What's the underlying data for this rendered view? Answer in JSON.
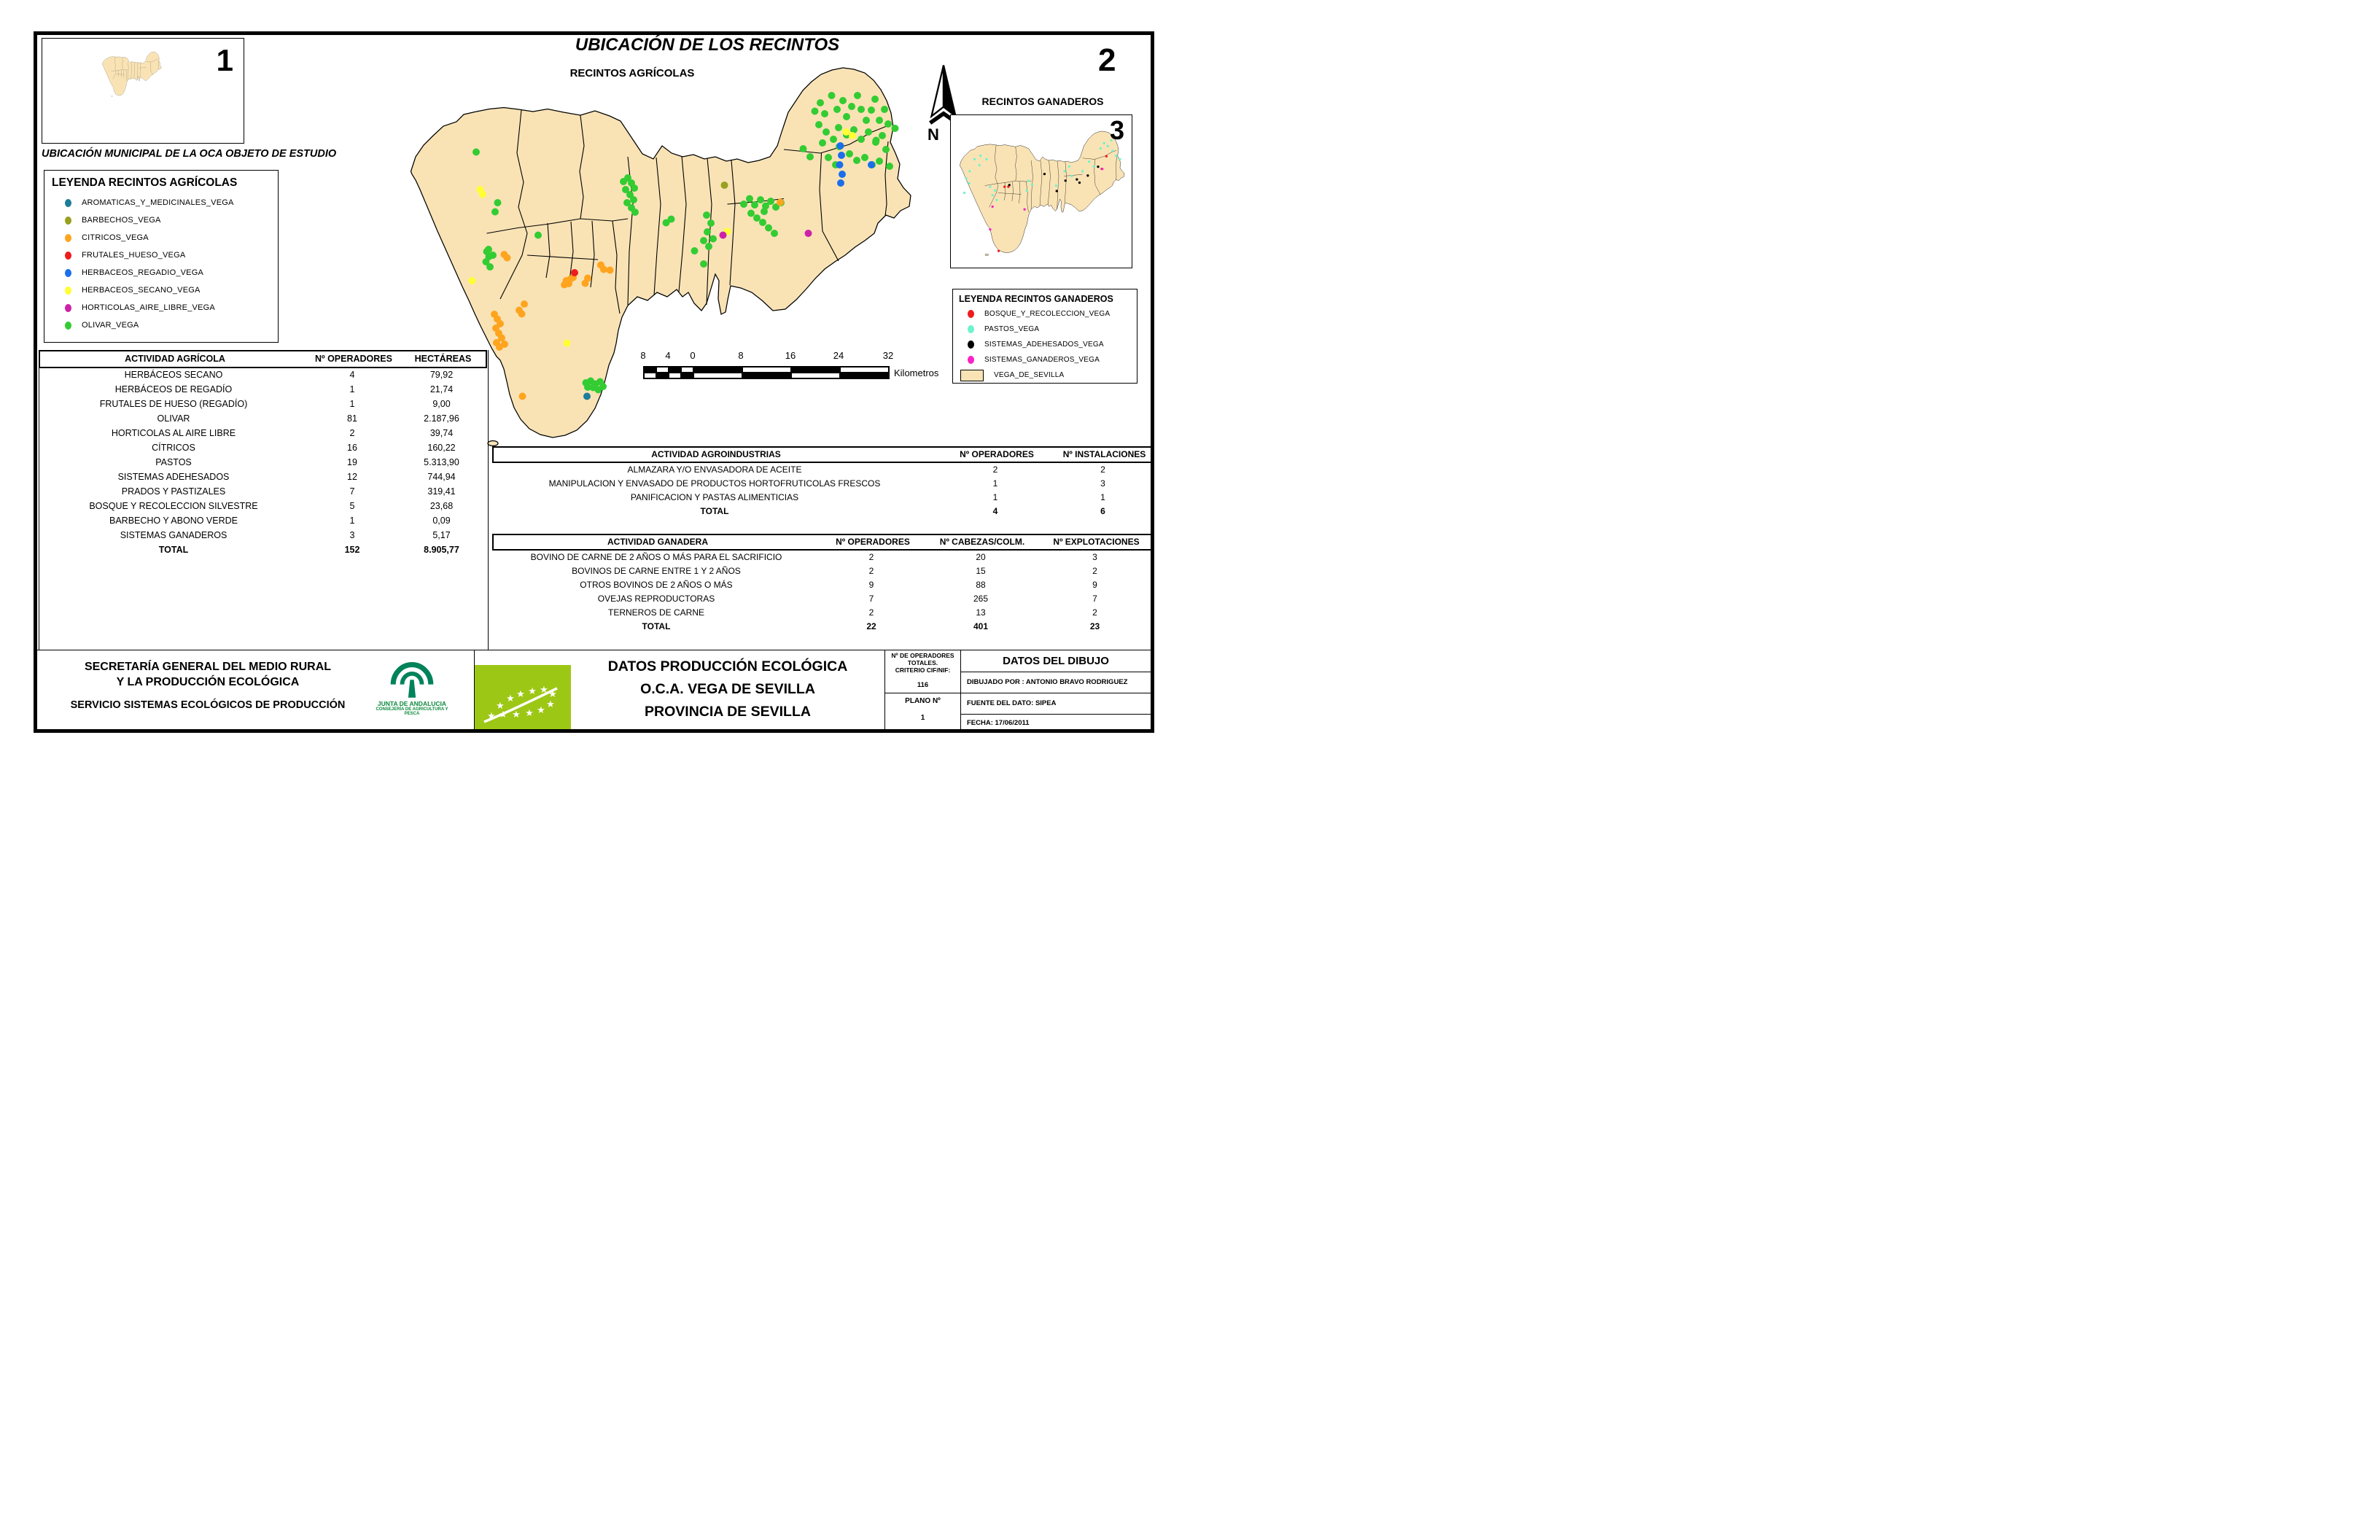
{
  "page": {
    "inset1_number": "1",
    "inset2_number": "2",
    "inset3_number": "3"
  },
  "titles": {
    "main": "UBICACIÓN DE LOS RECINTOS",
    "sub_agricolas": "RECINTOS AGRÍCOLAS",
    "sub_ganaderos": "RECINTOS GANADEROS",
    "inset_caption": "UBICACIÓN MUNICIPAL DE LA OCA OBJETO DE ESTUDIO"
  },
  "compass": {
    "label": "N"
  },
  "scalebar": {
    "labels": [
      "8",
      "4",
      "0",
      "8",
      "16",
      "24",
      "32"
    ],
    "unit": "Kilometros"
  },
  "legend_agricolas": {
    "title": "LEYENDA RECINTOS AGRÍCOLAS",
    "items": [
      {
        "label": "AROMATICAS_Y_MEDICINALES_VEGA",
        "color": "#1D7E99"
      },
      {
        "label": "BARBECHOS_VEGA",
        "color": "#98A01E"
      },
      {
        "label": "CITRICOS_VEGA",
        "color": "#FFA41E"
      },
      {
        "label": "FRUTALES_HUESO_VEGA",
        "color": "#EE1C1C"
      },
      {
        "label": "HERBACEOS_REGADIO_VEGA",
        "color": "#1C6EEB"
      },
      {
        "label": "HERBACEOS_SECANO_VEGA",
        "color": "#FFFF33"
      },
      {
        "label": "HORTICOLAS_AIRE_LIBRE_VEGA",
        "color": "#CC22AA"
      },
      {
        "label": "OLIVAR_VEGA",
        "color": "#33CC33"
      }
    ]
  },
  "legend_ganaderos": {
    "title": "LEYENDA RECINTOS GANADEROS",
    "items": [
      {
        "label": "BOSQUE_Y_RECOLECCION_VEGA",
        "color": "#EE1C1C"
      },
      {
        "label": "PASTOS_VEGA",
        "color": "#6FF2CE"
      },
      {
        "label": "SISTEMAS_ADEHESADOS_VEGA",
        "color": "#000000"
      },
      {
        "label": "SISTEMAS_GANADEROS_VEGA",
        "color": "#FB20C8"
      },
      {
        "label": "VEGA_DE_SEVILLA",
        "color": "#F9E3B5",
        "swatch": true
      }
    ]
  },
  "tables": {
    "agricola": {
      "headers": [
        "ACTIVIDAD AGRÍCOLA",
        "Nº OPERADORES",
        "HECTÁREAS"
      ],
      "rows": [
        [
          "HERBÁCEOS SECANO",
          "4",
          "79,92"
        ],
        [
          "HERBÁCEOS DE REGADÍO",
          "1",
          "21,74"
        ],
        [
          "FRUTALES DE HUESO (REGADÍO)",
          "1",
          "9,00"
        ],
        [
          "OLIVAR",
          "81",
          "2.187,96"
        ],
        [
          "HORTICOLAS AL AIRE LIBRE",
          "2",
          "39,74"
        ],
        [
          "CÍTRICOS",
          "16",
          "160,22"
        ],
        [
          "PASTOS",
          "19",
          "5.313,90"
        ],
        [
          "SISTEMAS ADEHESADOS",
          "12",
          "744,94"
        ],
        [
          "PRADOS Y PASTIZALES",
          "7",
          "319,41"
        ],
        [
          "BOSQUE Y RECOLECCION SILVESTRE",
          "5",
          "23,68"
        ],
        [
          "BARBECHO Y ABONO VERDE",
          "1",
          "0,09"
        ],
        [
          "SISTEMAS GANADEROS",
          "3",
          "5,17"
        ],
        [
          "TOTAL",
          "152",
          "8.905,77"
        ]
      ]
    },
    "agroindustrias": {
      "headers": [
        "ACTIVIDAD AGROINDUSTRIAS",
        "Nº OPERADORES",
        "Nº INSTALACIONES"
      ],
      "rows": [
        [
          "ALMAZARA Y/O ENVASADORA DE ACEITE",
          "2",
          "2"
        ],
        [
          "MANIPULACION Y ENVASADO DE PRODUCTOS HORTOFRUTICOLAS FRESCOS",
          "1",
          "3"
        ],
        [
          "PANIFICACION Y PASTAS ALIMENTICIAS",
          "1",
          "1"
        ],
        [
          "TOTAL",
          "4",
          "6"
        ]
      ]
    },
    "ganadera": {
      "headers": [
        "ACTIVIDAD GANADERA",
        "Nº OPERADORES",
        "Nº CABEZAS/COLM.",
        "Nº EXPLOTACIONES"
      ],
      "rows": [
        [
          "BOVINO DE CARNE DE 2 AÑOS O MÁS PARA EL SACRIFICIO",
          "2",
          "20",
          "3"
        ],
        [
          "BOVINOS  DE CARNE ENTRE 1 Y 2 AÑOS",
          "2",
          "15",
          "2"
        ],
        [
          "OTROS BOVINOS DE 2 AÑOS O MÁS",
          "9",
          "88",
          "9"
        ],
        [
          "OVEJAS REPRODUCTORAS",
          "7",
          "265",
          "7"
        ],
        [
          "TERNEROS DE CARNE",
          "2",
          "13",
          "2"
        ],
        [
          "TOTAL",
          "22",
          "401",
          "23"
        ]
      ]
    }
  },
  "footer": {
    "org_line1": "SECRETARÍA GENERAL DEL MEDIO RURAL",
    "org_line2": "Y LA PRODUCCIÓN ECOLÓGICA",
    "org_line3": "SERVICIO SISTEMAS ECOLÓGICOS DE PRODUCCIÓN",
    "junta_name": "JUNTA DE ANDALUCIA",
    "junta_dept": "CONSEJERÍA DE AGRICULTURA Y PESCA",
    "doc_title1": "DATOS PRODUCCIÓN ECOLÓGICA",
    "doc_title2": "O.C.A. VEGA DE SEVILLA",
    "doc_title3": "PROVINCIA DE SEVILLA",
    "operators_label1": "Nº DE OPERADORES",
    "operators_label2": "TOTALES.",
    "operators_label3": "CRITERIO CIF/NIF:",
    "operators_value": "116",
    "plano_label": "PLANO Nº",
    "plano_value": "1",
    "drawing_title": "DATOS DEL DIBUJO",
    "drawn_by": "DIBUJADO POR : ANTONIO BRAVO RODRIGUEZ",
    "source": "FUENTE DEL DATO: SIPEA",
    "date": "FECHA: 17/06/2011"
  },
  "map": {
    "land_color": "#F9E3B5",
    "border_color": "#000000",
    "agricola_layers": [
      {
        "key": "olivar",
        "color": "#33CC33",
        "points": [
          [
            2235,
            305
          ],
          [
            2250,
            282
          ],
          [
            2262,
            312
          ],
          [
            2281,
            262
          ],
          [
            2296,
            300
          ],
          [
            2312,
            276
          ],
          [
            2322,
            320
          ],
          [
            2336,
            292
          ],
          [
            2352,
            262
          ],
          [
            2362,
            300
          ],
          [
            2376,
            330
          ],
          [
            2390,
            302
          ],
          [
            2400,
            272
          ],
          [
            2412,
            330
          ],
          [
            2426,
            300
          ],
          [
            2436,
            340
          ],
          [
            2300,
            350
          ],
          [
            2322,
            370
          ],
          [
            2342,
            356
          ],
          [
            2362,
            382
          ],
          [
            2382,
            362
          ],
          [
            2402,
            390
          ],
          [
            2420,
            372
          ],
          [
            2430,
            410
          ],
          [
            2246,
            342
          ],
          [
            2266,
            362
          ],
          [
            2286,
            382
          ],
          [
            2256,
            392
          ],
          [
            2302,
            402
          ],
          [
            2330,
            422
          ],
          [
            2350,
            440
          ],
          [
            2372,
            432
          ],
          [
            2392,
            452
          ],
          [
            2412,
            442
          ],
          [
            2272,
            432
          ],
          [
            2292,
            452
          ],
          [
            2440,
            456
          ],
          [
            2403,
            385
          ],
          [
            2455,
            352
          ],
          [
            2203,
            408
          ],
          [
            2222,
            430
          ],
          [
            1710,
            498
          ],
          [
            1722,
            488
          ],
          [
            1732,
            502
          ],
          [
            1740,
            516
          ],
          [
            1716,
            520
          ],
          [
            1728,
            534
          ],
          [
            1738,
            548
          ],
          [
            1720,
            556
          ],
          [
            1732,
            570
          ],
          [
            1742,
            582
          ],
          [
            2040,
            560
          ],
          [
            2056,
            545
          ],
          [
            2070,
            562
          ],
          [
            2086,
            548
          ],
          [
            2100,
            565
          ],
          [
            2114,
            552
          ],
          [
            2128,
            568
          ],
          [
            2142,
            556
          ],
          [
            2060,
            585
          ],
          [
            2076,
            598
          ],
          [
            2092,
            610
          ],
          [
            2108,
            625
          ],
          [
            2124,
            640
          ],
          [
            2096,
            580
          ],
          [
            1938,
            590
          ],
          [
            1950,
            612
          ],
          [
            1940,
            636
          ],
          [
            1956,
            655
          ],
          [
            1944,
            676
          ],
          [
            1930,
            660
          ],
          [
            1827,
            611
          ],
          [
            1841,
            601
          ],
          [
            1905,
            688
          ],
          [
            1930,
            724
          ],
          [
            1306,
            417
          ],
          [
            1365,
            556
          ],
          [
            1358,
            581
          ],
          [
            1335,
            690
          ],
          [
            1341,
            704
          ],
          [
            1333,
            718
          ],
          [
            1344,
            732
          ],
          [
            1352,
            700
          ],
          [
            1340,
            684
          ],
          [
            1476,
            645
          ],
          [
            1607,
            1050
          ],
          [
            1620,
            1045
          ],
          [
            1633,
            1053
          ],
          [
            1646,
            1047
          ],
          [
            1654,
            1060
          ],
          [
            1627,
            1063
          ],
          [
            1641,
            1069
          ],
          [
            1612,
            1062
          ]
        ]
      },
      {
        "key": "citricos",
        "color": "#FFA41E",
        "points": [
          [
            1383,
            698
          ],
          [
            1391,
            707
          ],
          [
            1553,
            770
          ],
          [
            1548,
            781
          ],
          [
            1564,
            766
          ],
          [
            1560,
            778
          ],
          [
            1572,
            761
          ],
          [
            1605,
            777
          ],
          [
            1612,
            763
          ],
          [
            1648,
            727
          ],
          [
            1656,
            739
          ],
          [
            1673,
            741
          ],
          [
            1438,
            834
          ],
          [
            1424,
            851
          ],
          [
            1431,
            861
          ],
          [
            1356,
            862
          ],
          [
            1364,
            875
          ],
          [
            1372,
            888
          ],
          [
            1360,
            900
          ],
          [
            1368,
            914
          ],
          [
            1376,
            927
          ],
          [
            1362,
            940
          ],
          [
            1370,
            952
          ],
          [
            1384,
            944
          ],
          [
            1433,
            1087
          ],
          [
            2140,
            555
          ]
        ]
      },
      {
        "key": "frutales_hueso",
        "color": "#EE1C1C",
        "points": [
          [
            1576,
            748
          ]
        ]
      },
      {
        "key": "herbaceos_regadio",
        "color": "#1C6EEB",
        "points": [
          [
            2305,
            400
          ],
          [
            2308,
            426
          ],
          [
            2303,
            452
          ],
          [
            2310,
            478
          ],
          [
            2306,
            502
          ],
          [
            2390,
            452
          ]
        ]
      },
      {
        "key": "herbaceos_secano",
        "color": "#FFFF33",
        "points": [
          [
            1317,
            520
          ],
          [
            1324,
            533
          ],
          [
            1295,
            770
          ],
          [
            1555,
            941
          ],
          [
            1995,
            635
          ],
          [
            2321,
            362
          ],
          [
            2338,
            372
          ]
        ]
      },
      {
        "key": "horticolas",
        "color": "#CC22AA",
        "points": [
          [
            1983,
            645
          ],
          [
            2217,
            640
          ]
        ]
      },
      {
        "key": "barbechos",
        "color": "#98A01E",
        "points": [
          [
            1987,
            508
          ]
        ]
      },
      {
        "key": "aromaticas",
        "color": "#1D7E99",
        "points": [
          [
            1610,
            1087
          ]
        ]
      }
    ],
    "ganadera_layers": [
      {
        "key": "pastos",
        "color": "#6FF2CE",
        "points": [
          [
            1250,
            420
          ],
          [
            1300,
            390
          ],
          [
            1350,
            420
          ],
          [
            1290,
            470
          ],
          [
            1210,
            520
          ],
          [
            1180,
            580
          ],
          [
            1205,
            620
          ],
          [
            1165,
            700
          ],
          [
            1380,
            650
          ],
          [
            1420,
            680
          ],
          [
            1400,
            720
          ],
          [
            1435,
            760
          ],
          [
            1700,
            600
          ],
          [
            1730,
            632
          ],
          [
            1685,
            680
          ],
          [
            2000,
            520
          ],
          [
            2040,
            480
          ],
          [
            2060,
            560
          ],
          [
            2300,
            330
          ],
          [
            2330,
            285
          ],
          [
            2360,
            310
          ],
          [
            2400,
            350
          ],
          [
            2430,
            390
          ],
          [
            2462,
            420
          ],
          [
            2390,
            262
          ],
          [
            2205,
            440
          ],
          [
            2245,
            480
          ],
          [
            2150,
            520
          ],
          [
            1930,
            640
          ]
        ]
      },
      {
        "key": "adehesados",
        "color": "#000000",
        "points": [
          [
            2103,
            588
          ],
          [
            2125,
            615
          ],
          [
            2194,
            556
          ],
          [
            2280,
            482
          ],
          [
            2008,
            598
          ],
          [
            1833,
            543
          ],
          [
            1935,
            685
          ],
          [
            1540,
            635
          ]
        ]
      },
      {
        "key": "bosque",
        "color": "#EE1C1C",
        "points": [
          [
            2349,
            395
          ],
          [
            2310,
            500
          ],
          [
            1500,
            649
          ],
          [
            1532,
            649
          ],
          [
            1451,
            1184
          ]
        ]
      },
      {
        "key": "sistemas_ganaderos",
        "color": "#FB20C8",
        "points": [
          [
            1400,
            815
          ],
          [
            1667,
            838
          ],
          [
            1380,
            1005
          ],
          [
            2315,
            501
          ]
        ]
      }
    ]
  }
}
